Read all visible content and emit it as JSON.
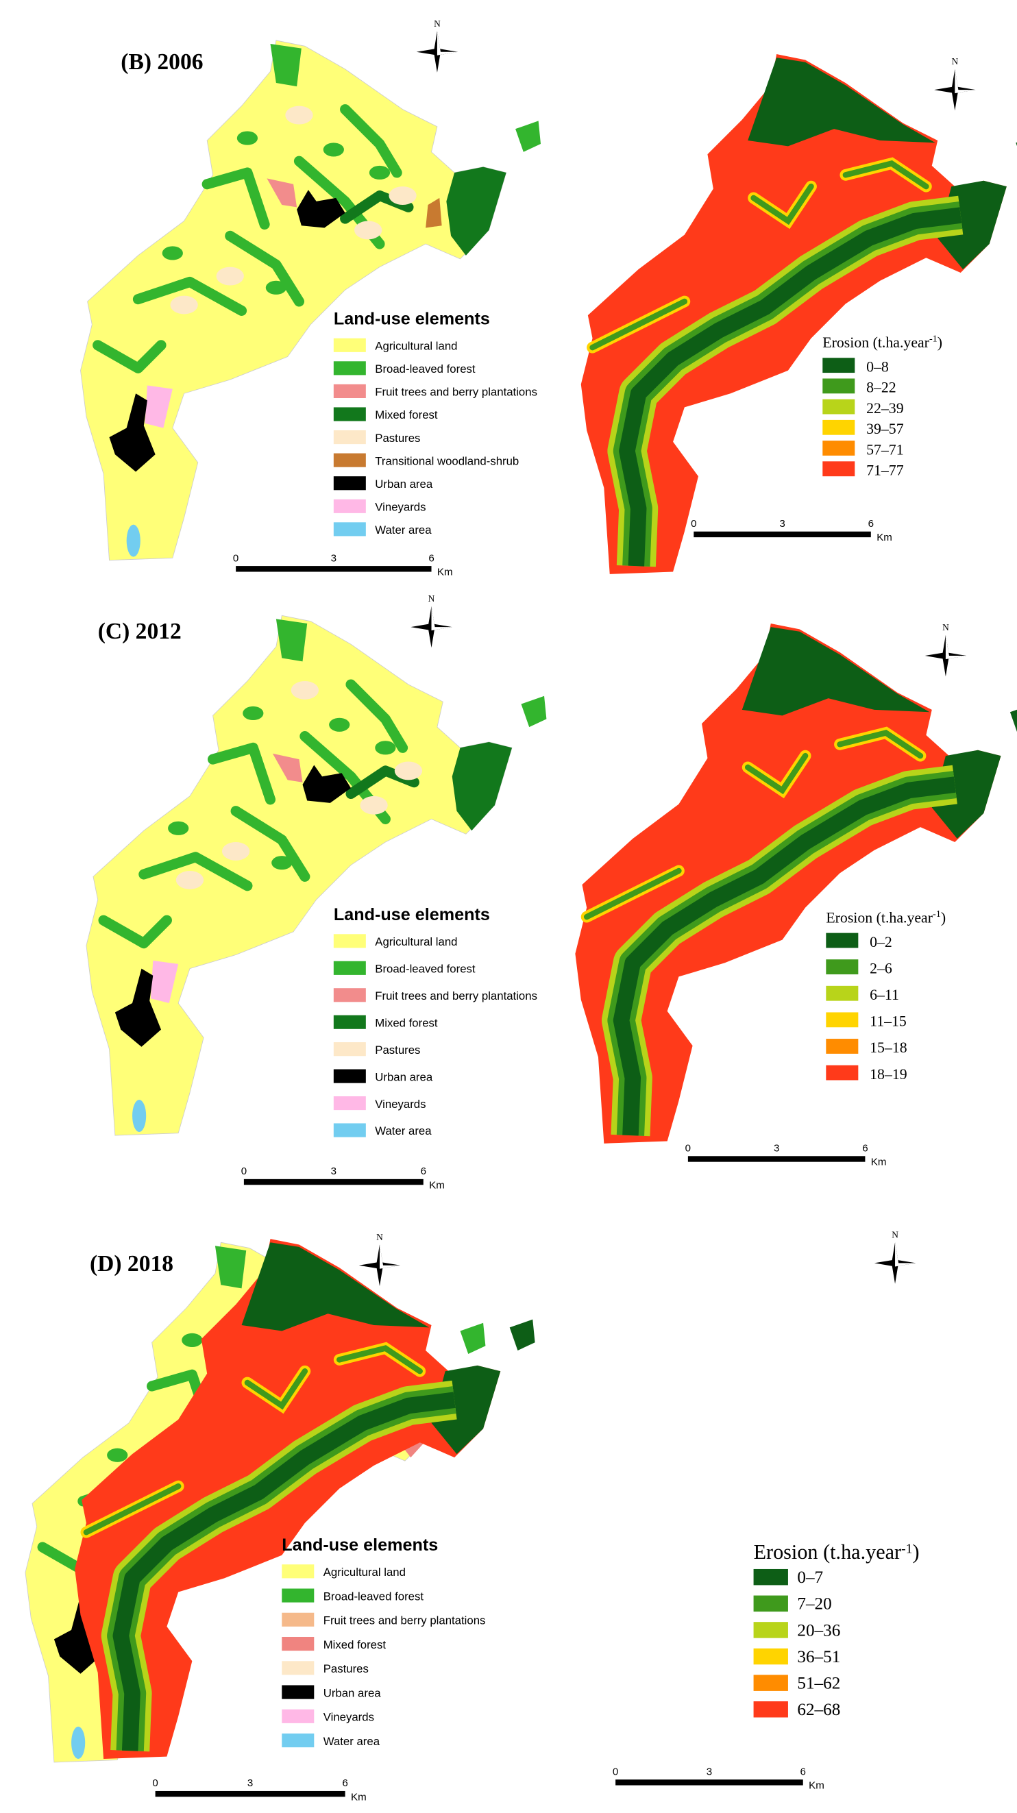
{
  "panels": [
    {
      "title": "(B) 2006",
      "north_left": "N",
      "north_right": "N",
      "land_use": {
        "title": "Land-use elements",
        "items": [
          {
            "label": "Agricultural land",
            "color": "#ffff78"
          },
          {
            "label": "Broad-leaved forest",
            "color": "#33b52e"
          },
          {
            "label": "Fruit trees and berry plantations",
            "color": "#f28c8c"
          },
          {
            "label": "Mixed forest",
            "color": "#12781c"
          },
          {
            "label": "Pastures",
            "color": "#fde8c8"
          },
          {
            "label": "Transitional woodland-shrub",
            "color": "#c87a30"
          },
          {
            "label": "Urban area",
            "color": "#000000"
          },
          {
            "label": "Vineyards",
            "color": "#ffb8e6"
          },
          {
            "label": "Water area",
            "color": "#72cdf0"
          }
        ]
      },
      "erosion": {
        "title_prefix": "Erosion (t.ha.year",
        "title_sup": "-1",
        "title_suffix": ")",
        "classes": [
          {
            "label": "0–8",
            "color": "#0d5e16"
          },
          {
            "label": "8–22",
            "color": "#3f9a1c"
          },
          {
            "label": "22–39",
            "color": "#b8d41a"
          },
          {
            "label": "39–57",
            "color": "#ffd400"
          },
          {
            "label": "57–71",
            "color": "#ff8c00"
          },
          {
            "label": "71–77",
            "color": "#ff3a1a"
          }
        ]
      },
      "scale_left": {
        "ticks": [
          "0",
          "3",
          "6"
        ],
        "unit": "Km"
      },
      "scale_right": {
        "ticks": [
          "0",
          "3",
          "6"
        ],
        "unit": "Km"
      }
    },
    {
      "title": "(C) 2012",
      "north_left": "N",
      "north_right": "N",
      "land_use": {
        "title": "Land-use elements",
        "items": [
          {
            "label": "Agricultural land",
            "color": "#ffff78"
          },
          {
            "label": "Broad-leaved forest",
            "color": "#33b52e"
          },
          {
            "label": "Fruit trees and berry plantations",
            "color": "#f28c8c"
          },
          {
            "label": "Mixed forest",
            "color": "#12781c"
          },
          {
            "label": "Pastures",
            "color": "#fde8c8"
          },
          {
            "label": "Urban area",
            "color": "#000000"
          },
          {
            "label": "Vineyards",
            "color": "#ffb8e6"
          },
          {
            "label": "Water area",
            "color": "#72cdf0"
          }
        ]
      },
      "erosion": {
        "title_prefix": "Erosion (t.ha.year",
        "title_sup": "-1",
        "title_suffix": ")",
        "classes": [
          {
            "label": "0–2",
            "color": "#0d5e16"
          },
          {
            "label": "2–6",
            "color": "#3f9a1c"
          },
          {
            "label": "6–11",
            "color": "#b8d41a"
          },
          {
            "label": "11–15",
            "color": "#ffd400"
          },
          {
            "label": "15–18",
            "color": "#ff8c00"
          },
          {
            "label": "18–19",
            "color": "#ff3a1a"
          }
        ]
      },
      "scale_left": {
        "ticks": [
          "0",
          "3",
          "6"
        ],
        "unit": "Km"
      },
      "scale_right": {
        "ticks": [
          "0",
          "3",
          "6"
        ],
        "unit": "Km"
      }
    },
    {
      "title": "(D) 2018",
      "north_left": "N",
      "north_right": "N",
      "land_use": {
        "title": "Land-use elements",
        "items": [
          {
            "label": "Agricultural land",
            "color": "#ffff78"
          },
          {
            "label": "Broad-leaved forest",
            "color": "#33b52e"
          },
          {
            "label": "Fruit trees and berry plantations",
            "color": "#f5b98a"
          },
          {
            "label": "Mixed forest",
            "color": "#f08480"
          },
          {
            "label": "Pastures",
            "color": "#fde8c8"
          },
          {
            "label": "Urban area",
            "color": "#000000"
          },
          {
            "label": "Vineyards",
            "color": "#ffb8e6"
          },
          {
            "label": "Water area",
            "color": "#72cdf0"
          }
        ]
      },
      "erosion": {
        "title_prefix": "Erosion (t.ha.year",
        "title_sup": "-1",
        "title_suffix": ")",
        "classes": [
          {
            "label": "0–7",
            "color": "#0d5e16"
          },
          {
            "label": "7–20",
            "color": "#3f9a1c"
          },
          {
            "label": "20–36",
            "color": "#b8d41a"
          },
          {
            "label": "36–51",
            "color": "#ffd400"
          },
          {
            "label": "51–62",
            "color": "#ff8c00"
          },
          {
            "label": "62–68",
            "color": "#ff3a1a"
          }
        ]
      },
      "scale_left": {
        "ticks": [
          "0",
          "3",
          "6"
        ],
        "unit": "Km"
      },
      "scale_right": {
        "ticks": [
          "0",
          "3",
          "6"
        ],
        "unit": "Km"
      }
    }
  ]
}
